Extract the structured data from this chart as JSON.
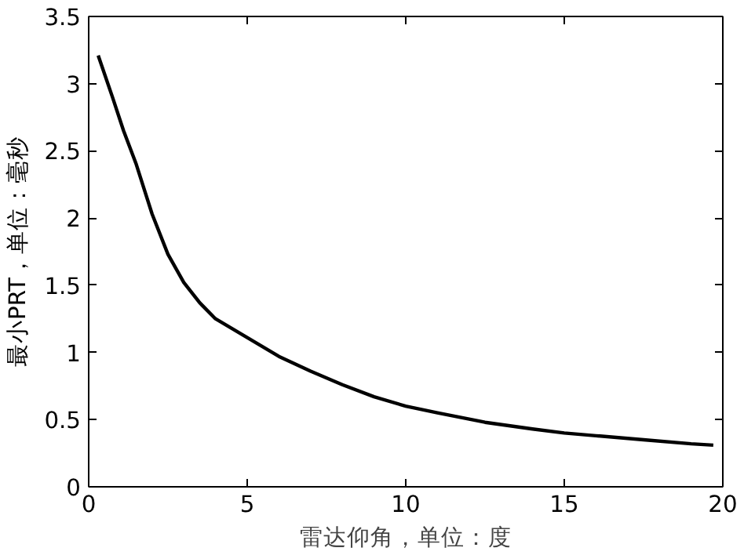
{
  "chart_data": {
    "type": "line",
    "xlabel": "雷达仰角，单位：度",
    "ylabel": "最小PRT，单位：毫秒",
    "x": [
      0.3,
      0.75,
      1.1,
      1.5,
      2,
      2.5,
      3,
      3.5,
      4,
      5,
      6,
      7,
      8,
      9,
      10,
      11,
      12.5,
      14,
      15,
      16,
      17.5,
      19,
      19.7
    ],
    "series": [
      {
        "color": "#000000",
        "values": [
          3.21,
          2.9,
          2.65,
          2.4,
          2.03,
          1.73,
          1.52,
          1.37,
          1.25,
          1.11,
          0.97,
          0.86,
          0.76,
          0.67,
          0.6,
          0.55,
          0.48,
          0.43,
          0.4,
          0.38,
          0.35,
          0.32,
          0.31
        ]
      }
    ],
    "xlim": [
      0,
      20
    ],
    "xticks": [
      0,
      5,
      10,
      15,
      20
    ],
    "ylim": [
      0,
      3.5
    ],
    "yticks": [
      0,
      0.5,
      1,
      1.5,
      2,
      2.5,
      3,
      3.5
    ],
    "grid": false,
    "marker": "none",
    "line_style": "solid"
  }
}
